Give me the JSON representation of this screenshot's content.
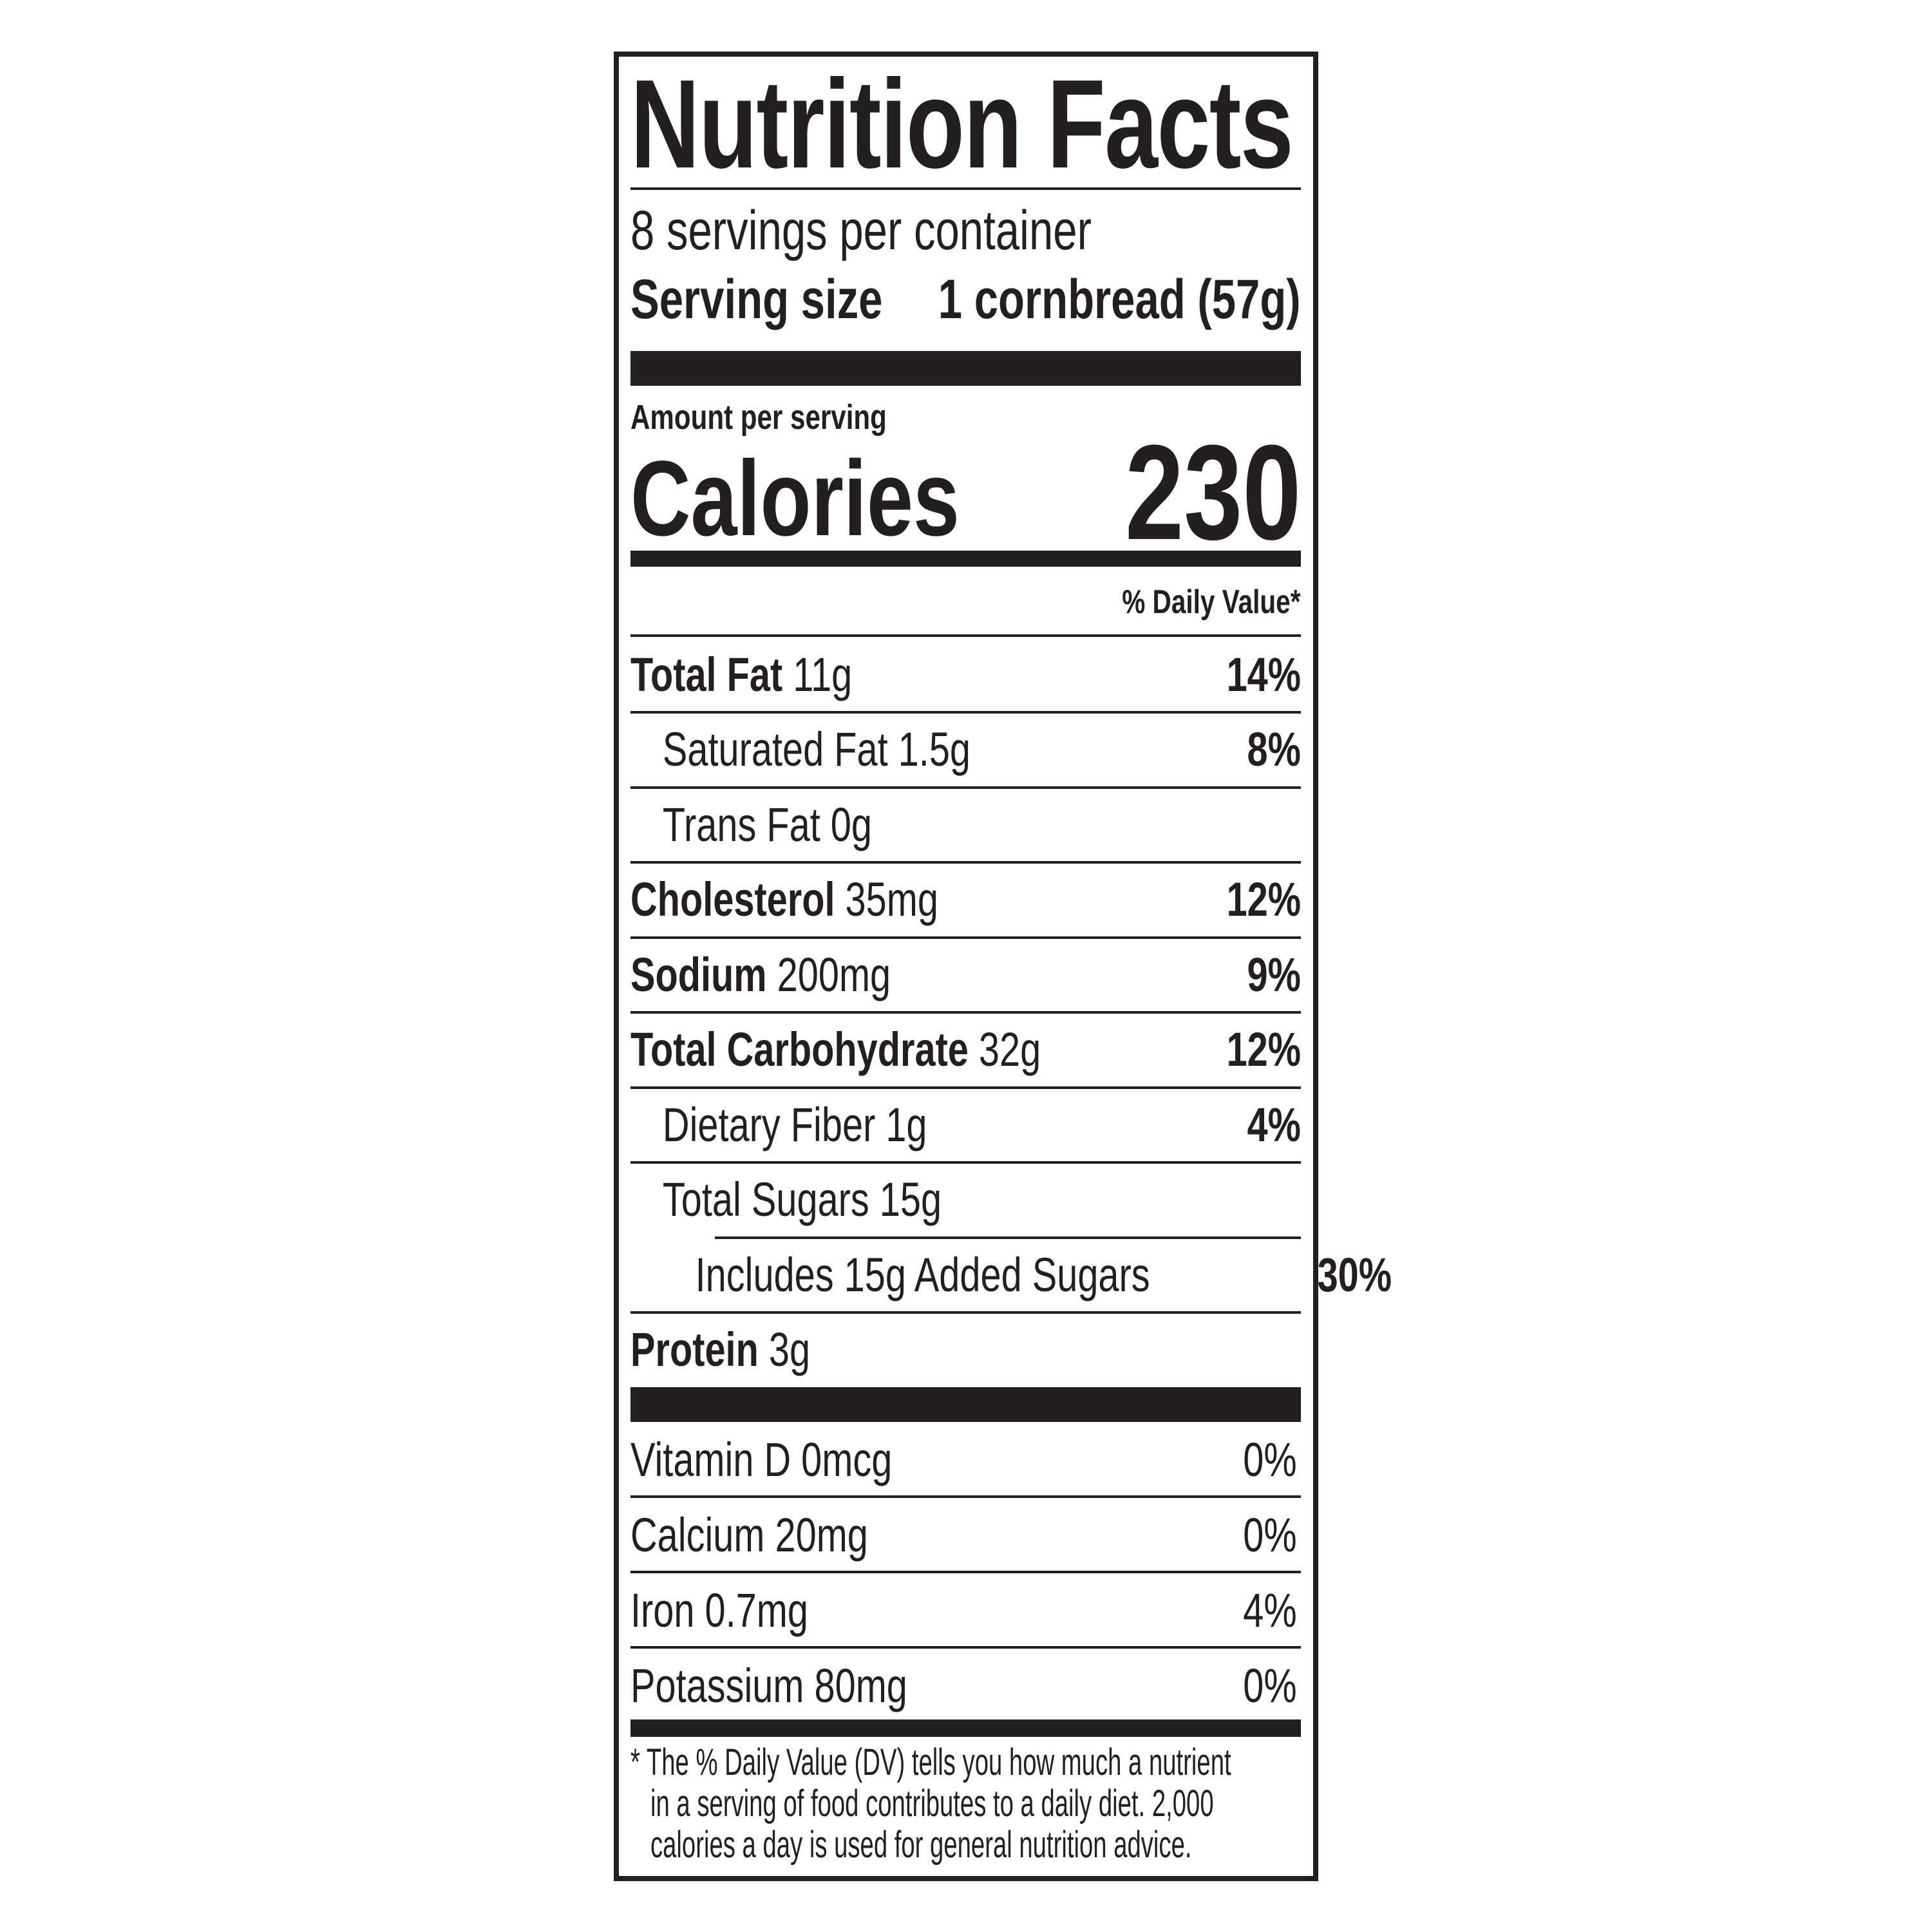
{
  "title": "Nutrition Facts",
  "servings_per_container": "8 servings per container",
  "serving_size_label": "Serving size",
  "serving_size_value": "1 cornbread (57g)",
  "amount_per_serving": "Amount per serving",
  "calories_label": "Calories",
  "calories_value": "230",
  "daily_value_header": "% Daily Value*",
  "nutrients": [
    {
      "name": "Total Fat",
      "amount": "11g",
      "dv": "14%"
    },
    {
      "name": "Saturated Fat 1.5g",
      "amount": "",
      "dv": "8%"
    },
    {
      "name": "Trans Fat 0g",
      "amount": "",
      "dv": ""
    },
    {
      "name": "Cholesterol",
      "amount": "35mg",
      "dv": "12%"
    },
    {
      "name": "Sodium",
      "amount": "200mg",
      "dv": "9%"
    },
    {
      "name": "Total Carbohydrate",
      "amount": "32g",
      "dv": "12%"
    },
    {
      "name": "Dietary Fiber 1g",
      "amount": "",
      "dv": "4%"
    },
    {
      "name": "Total Sugars 15g",
      "amount": "",
      "dv": ""
    },
    {
      "name": "Includes 15g Added Sugars",
      "amount": "",
      "dv": "30%"
    },
    {
      "name": "Protein",
      "amount": "3g",
      "dv": ""
    }
  ],
  "vitamins": [
    {
      "label": "Vitamin D 0mcg",
      "dv": "0%"
    },
    {
      "label": "Calcium 20mg",
      "dv": "0%"
    },
    {
      "label": "Iron 0.7mg",
      "dv": "4%"
    },
    {
      "label": "Potassium 80mg",
      "dv": "0%"
    }
  ],
  "footnote": {
    "asterisk": "*",
    "line1": "The % Daily Value (DV) tells you how much a nutrient",
    "line2": "in a serving of food contributes to a daily diet. 2,000",
    "line3": "calories a day is used for general nutrition advice."
  }
}
